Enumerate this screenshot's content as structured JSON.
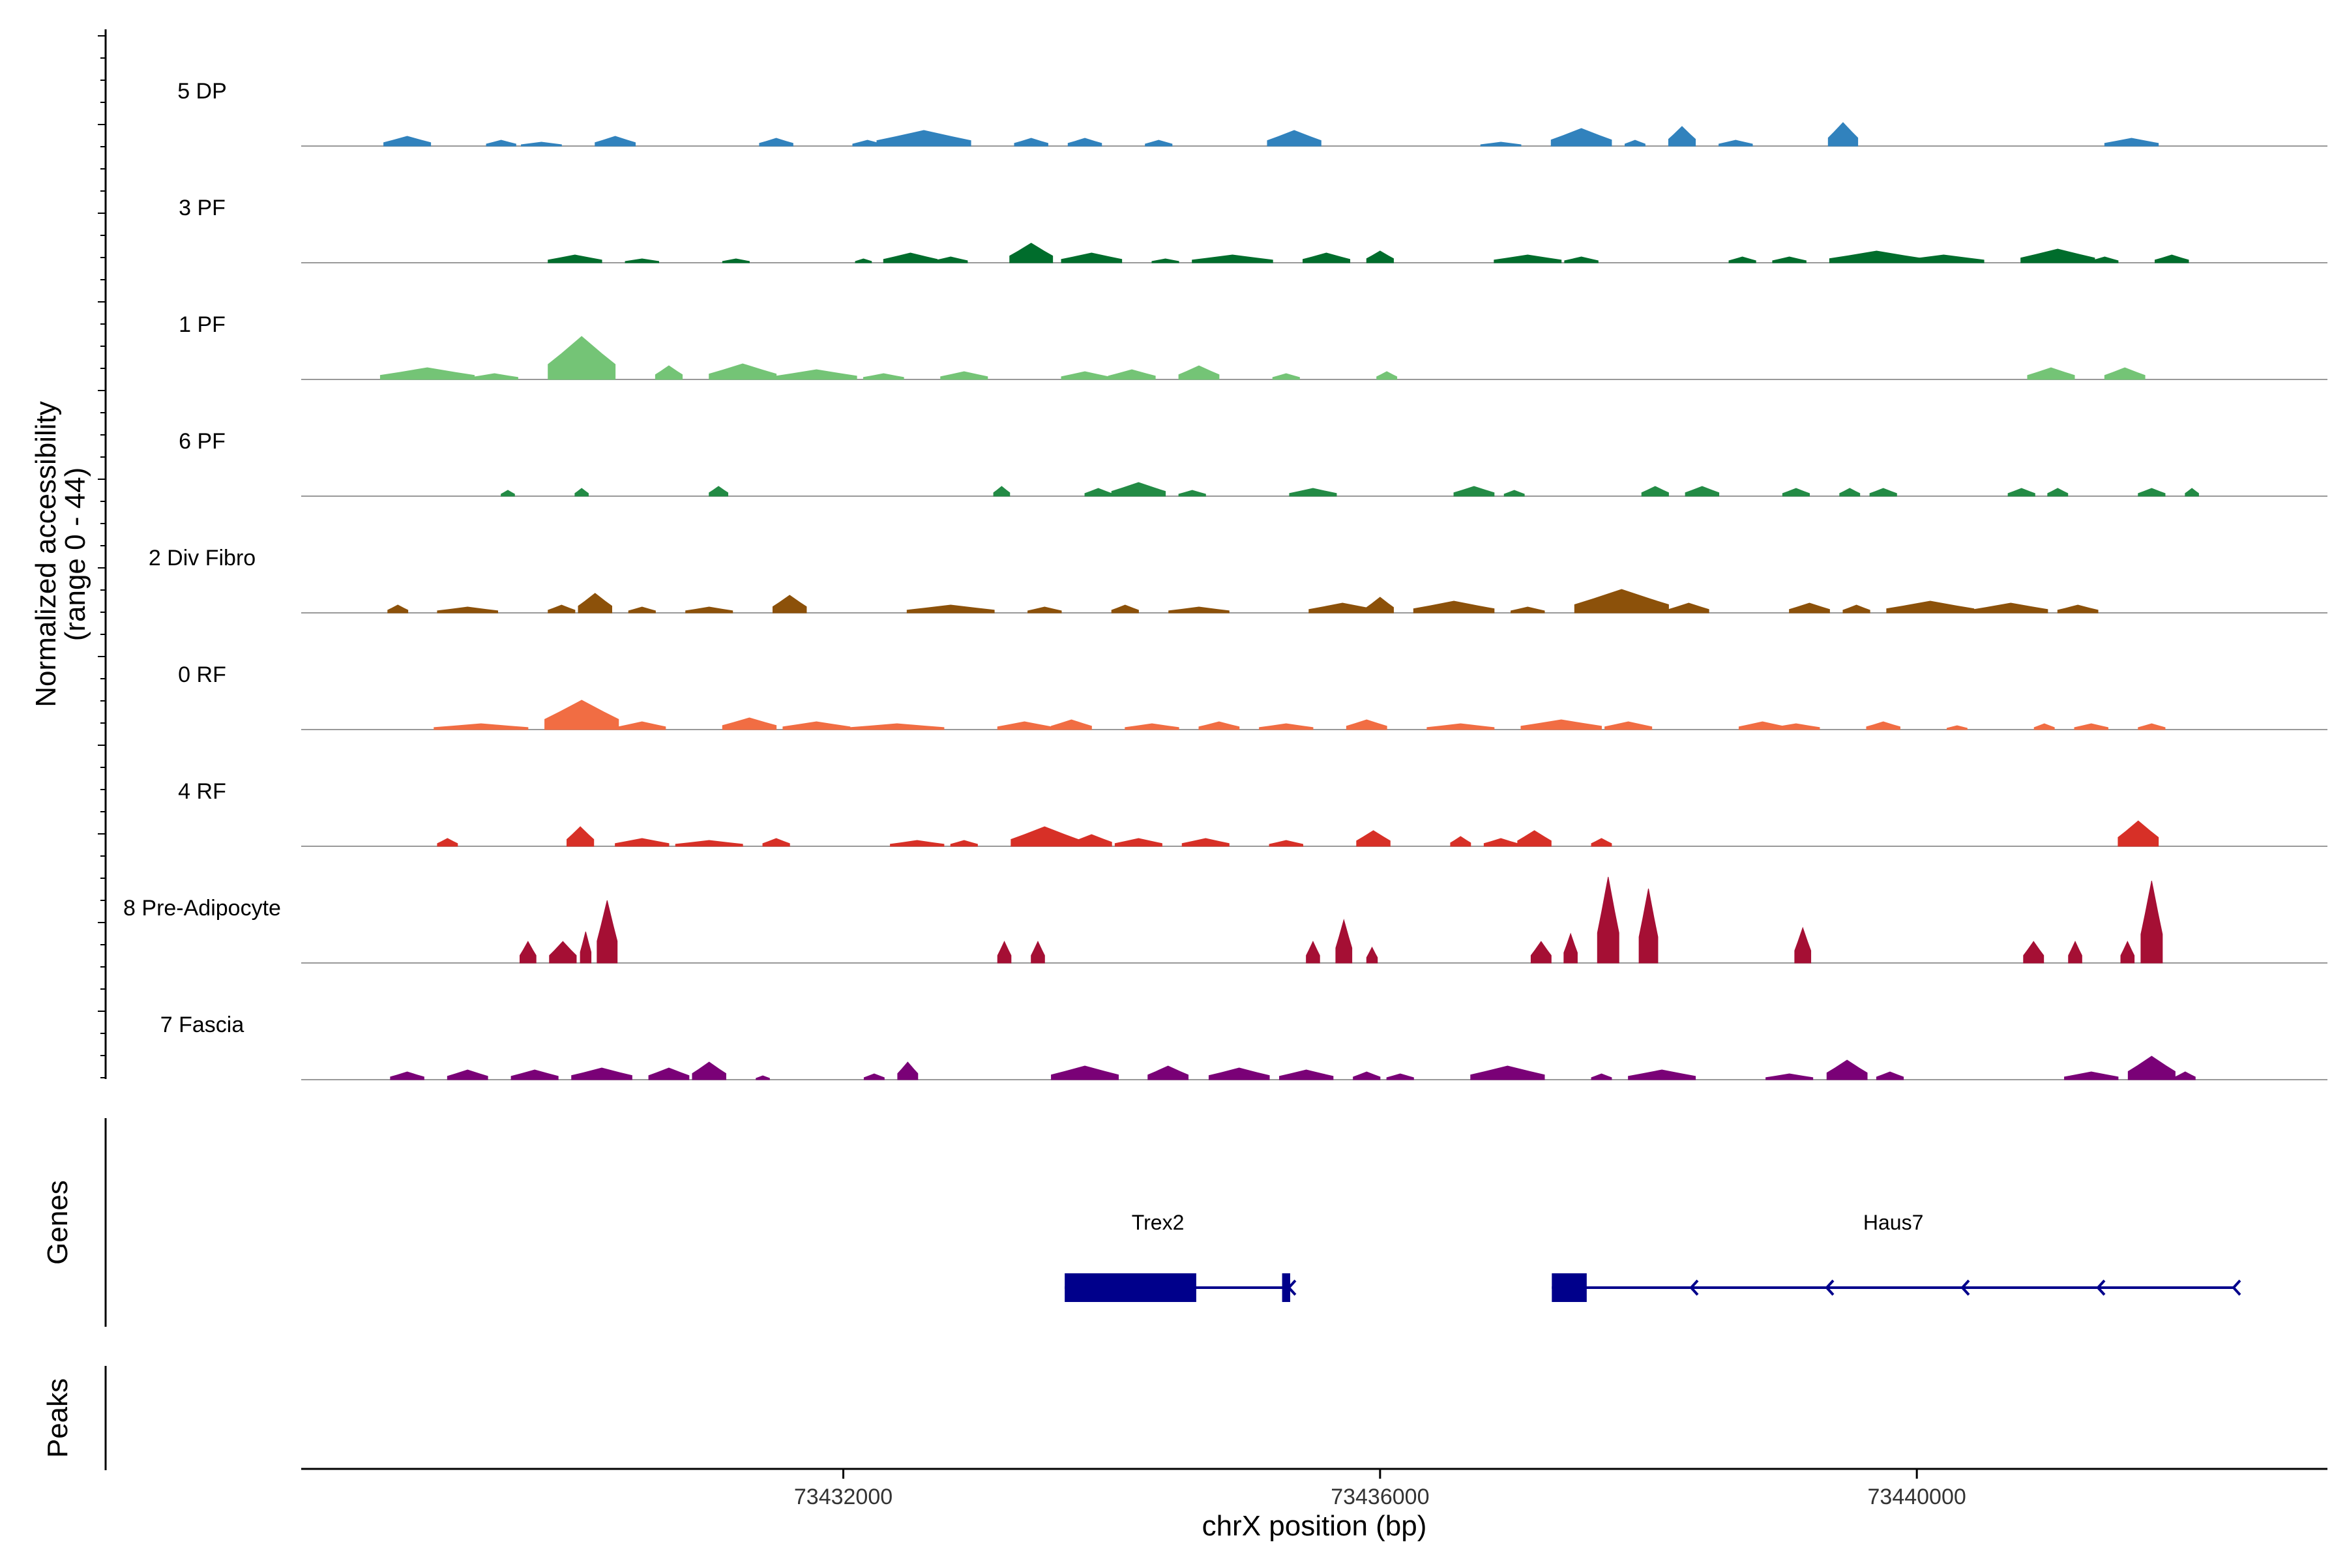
{
  "chart_data": {
    "type": "area",
    "title": "",
    "ylabel_line1": "Normalized accessibility",
    "ylabel_line2": "(range 0 - 44)",
    "y_range": [
      0,
      44
    ],
    "xlabel": "chrX position (bp)",
    "xlim": [
      73427960,
      73443060
    ],
    "x_ticks": [
      73432000,
      73436000,
      73440000
    ],
    "x_tick_labels": [
      "73432000",
      "73436000",
      "73440000"
    ],
    "tracks": [
      {
        "name": "5 DP",
        "color": "#3182BD",
        "peaks": [
          [
            73428750,
            350,
            5
          ],
          [
            73429450,
            220,
            3
          ],
          [
            73429750,
            300,
            2
          ],
          [
            73430300,
            300,
            5
          ],
          [
            73431500,
            250,
            4
          ],
          [
            73432180,
            220,
            3
          ],
          [
            73432600,
            700,
            8
          ],
          [
            73433400,
            250,
            4
          ],
          [
            73433800,
            250,
            4
          ],
          [
            73434350,
            200,
            3
          ],
          [
            73435360,
            400,
            8
          ],
          [
            73436900,
            300,
            2
          ],
          [
            73437500,
            450,
            9
          ],
          [
            73437900,
            150,
            3
          ],
          [
            73438250,
            200,
            10
          ],
          [
            73438650,
            250,
            3
          ],
          [
            73439450,
            220,
            12
          ],
          [
            73441600,
            400,
            4
          ]
        ]
      },
      {
        "name": "3 PF",
        "color": "#006D2C",
        "peaks": [
          [
            73430000,
            400,
            4
          ],
          [
            73430500,
            250,
            2
          ],
          [
            73431200,
            200,
            2
          ],
          [
            73432150,
            120,
            2
          ],
          [
            73432500,
            400,
            5
          ],
          [
            73432800,
            250,
            3
          ],
          [
            73433400,
            320,
            10
          ],
          [
            73433850,
            450,
            5
          ],
          [
            73434400,
            200,
            2
          ],
          [
            73434900,
            600,
            4
          ],
          [
            73435600,
            350,
            5
          ],
          [
            73436000,
            200,
            6
          ],
          [
            73437100,
            500,
            4
          ],
          [
            73437500,
            250,
            3
          ],
          [
            73438700,
            200,
            3
          ],
          [
            73439050,
            250,
            3
          ],
          [
            73439700,
            700,
            6
          ],
          [
            73440200,
            600,
            4
          ],
          [
            73441050,
            550,
            7
          ],
          [
            73441400,
            200,
            3
          ],
          [
            73441900,
            250,
            4
          ]
        ]
      },
      {
        "name": "1 PF",
        "color": "#74C476",
        "peaks": [
          [
            73428900,
            700,
            6
          ],
          [
            73429400,
            350,
            3
          ],
          [
            73430050,
            500,
            22
          ],
          [
            73430700,
            200,
            7
          ],
          [
            73431250,
            500,
            8
          ],
          [
            73431800,
            600,
            5
          ],
          [
            73432300,
            300,
            3
          ],
          [
            73432900,
            350,
            4
          ],
          [
            73433800,
            350,
            4
          ],
          [
            73434150,
            350,
            5
          ],
          [
            73434650,
            300,
            7
          ],
          [
            73435300,
            200,
            3
          ],
          [
            73436050,
            150,
            4
          ],
          [
            73441000,
            350,
            6
          ],
          [
            73441550,
            300,
            6
          ]
        ]
      },
      {
        "name": "6 PF",
        "color": "#238B45",
        "peaks": [
          [
            73429500,
            100,
            3
          ],
          [
            73430050,
            100,
            4
          ],
          [
            73431070,
            140,
            5
          ],
          [
            73433180,
            120,
            5
          ],
          [
            73433900,
            200,
            4
          ],
          [
            73434200,
            400,
            7
          ],
          [
            73434600,
            200,
            3
          ],
          [
            73435500,
            350,
            4
          ],
          [
            73436700,
            300,
            5
          ],
          [
            73437000,
            150,
            3
          ],
          [
            73438050,
            200,
            5
          ],
          [
            73438400,
            250,
            5
          ],
          [
            73439100,
            200,
            4
          ],
          [
            73439500,
            150,
            4
          ],
          [
            73439750,
            200,
            4
          ],
          [
            73440780,
            200,
            4
          ],
          [
            73441050,
            150,
            4
          ],
          [
            73441750,
            200,
            4
          ],
          [
            73442050,
            100,
            4
          ]
        ]
      },
      {
        "name": "2 Div Fibro",
        "color": "#8C510A",
        "peaks": [
          [
            73428680,
            150,
            4
          ],
          [
            73429200,
            450,
            3
          ],
          [
            73429900,
            200,
            4
          ],
          [
            73430150,
            250,
            10
          ],
          [
            73430500,
            200,
            3
          ],
          [
            73431000,
            350,
            3
          ],
          [
            73431600,
            250,
            9
          ],
          [
            73432800,
            650,
            4
          ],
          [
            73433500,
            250,
            3
          ],
          [
            73434100,
            200,
            4
          ],
          [
            73434650,
            450,
            3
          ],
          [
            73435720,
            500,
            5
          ],
          [
            73436000,
            200,
            8
          ],
          [
            73436550,
            600,
            6
          ],
          [
            73437100,
            250,
            3
          ],
          [
            73437800,
            700,
            12
          ],
          [
            73438300,
            300,
            5
          ],
          [
            73439200,
            300,
            5
          ],
          [
            73439550,
            200,
            4
          ],
          [
            73440100,
            650,
            6
          ],
          [
            73440700,
            550,
            5
          ],
          [
            73441200,
            300,
            4
          ]
        ]
      },
      {
        "name": "0 RF",
        "color": "#F16D43",
        "peaks": [
          [
            73429300,
            700,
            3
          ],
          [
            73430050,
            550,
            15
          ],
          [
            73430500,
            350,
            4
          ],
          [
            73431300,
            400,
            6
          ],
          [
            73431800,
            500,
            4
          ],
          [
            73432400,
            700,
            3
          ],
          [
            73433350,
            400,
            4
          ],
          [
            73433700,
            300,
            5
          ],
          [
            73434300,
            400,
            3
          ],
          [
            73434800,
            300,
            4
          ],
          [
            73435300,
            400,
            3
          ],
          [
            73435900,
            300,
            5
          ],
          [
            73436600,
            500,
            3
          ],
          [
            73437350,
            600,
            5
          ],
          [
            73437850,
            350,
            4
          ],
          [
            73438850,
            350,
            4
          ],
          [
            73439100,
            350,
            3
          ],
          [
            73439750,
            250,
            4
          ],
          [
            73440300,
            150,
            2
          ],
          [
            73440950,
            150,
            3
          ],
          [
            73441300,
            250,
            3
          ],
          [
            73441750,
            200,
            3
          ]
        ]
      },
      {
        "name": "4 RF",
        "color": "#D73027",
        "peaks": [
          [
            73429050,
            150,
            4
          ],
          [
            73430040,
            200,
            10
          ],
          [
            73430500,
            400,
            4
          ],
          [
            73431000,
            500,
            3
          ],
          [
            73431500,
            200,
            4
          ],
          [
            73432550,
            400,
            3
          ],
          [
            73432900,
            200,
            3
          ],
          [
            73433500,
            500,
            10
          ],
          [
            73433850,
            300,
            6
          ],
          [
            73434200,
            350,
            4
          ],
          [
            73434700,
            350,
            4
          ],
          [
            73435300,
            250,
            3
          ],
          [
            73435950,
            250,
            8
          ],
          [
            73436600,
            150,
            5
          ],
          [
            73436900,
            250,
            4
          ],
          [
            73437150,
            250,
            8
          ],
          [
            73437650,
            150,
            4
          ],
          [
            73441650,
            300,
            13
          ]
        ]
      },
      {
        "name": "8 Pre-Adipocyte",
        "color": "#A50F34",
        "peaks": [
          [
            73429650,
            120,
            11
          ],
          [
            73429910,
            200,
            11
          ],
          [
            73430080,
            80,
            16
          ],
          [
            73430240,
            150,
            32
          ],
          [
            73433200,
            100,
            11
          ],
          [
            73433450,
            100,
            11
          ],
          [
            73435500,
            100,
            11
          ],
          [
            73435730,
            120,
            22
          ],
          [
            73435940,
            80,
            8
          ],
          [
            73437200,
            150,
            11
          ],
          [
            73437420,
            100,
            15
          ],
          [
            73437700,
            160,
            44
          ],
          [
            73438000,
            140,
            38
          ],
          [
            73439150,
            120,
            18
          ],
          [
            73440870,
            150,
            11
          ],
          [
            73441180,
            100,
            11
          ],
          [
            73441570,
            100,
            11
          ],
          [
            73441750,
            160,
            42
          ]
        ]
      },
      {
        "name": "7 Fascia",
        "color": "#7A0177",
        "peaks": [
          [
            73428750,
            250,
            4
          ],
          [
            73429200,
            300,
            5
          ],
          [
            73429700,
            350,
            5
          ],
          [
            73430200,
            450,
            6
          ],
          [
            73430700,
            300,
            6
          ],
          [
            73431000,
            250,
            9
          ],
          [
            73431400,
            100,
            2
          ],
          [
            73432230,
            150,
            3
          ],
          [
            73432480,
            150,
            9
          ],
          [
            73433800,
            500,
            7
          ],
          [
            73434420,
            300,
            7
          ],
          [
            73434950,
            450,
            6
          ],
          [
            73435450,
            400,
            5
          ],
          [
            73435900,
            200,
            4
          ],
          [
            73436150,
            200,
            3
          ],
          [
            73436950,
            550,
            7
          ],
          [
            73437650,
            150,
            3
          ],
          [
            73438100,
            500,
            5
          ],
          [
            73439050,
            350,
            3
          ],
          [
            73439480,
            300,
            10
          ],
          [
            73439800,
            200,
            4
          ],
          [
            73441300,
            400,
            4
          ],
          [
            73441750,
            350,
            12
          ],
          [
            73442000,
            150,
            4
          ]
        ]
      }
    ],
    "genes": [
      {
        "name": "Trex2",
        "start": 73433650,
        "end": 73435330,
        "strand": "-",
        "exons": [
          [
            73433650,
            73434630
          ],
          [
            73435270,
            73435330
          ]
        ]
      },
      {
        "name": "Haus7",
        "start": 73437280,
        "end": 73442370,
        "strand": "-",
        "exons": [
          [
            73437280,
            73437540
          ]
        ]
      }
    ],
    "panel_labels": {
      "genes": "Genes",
      "peaks": "Peaks"
    }
  },
  "colors": {
    "gene": "#00008B",
    "baseline": "#999999",
    "axis": "#000000"
  }
}
